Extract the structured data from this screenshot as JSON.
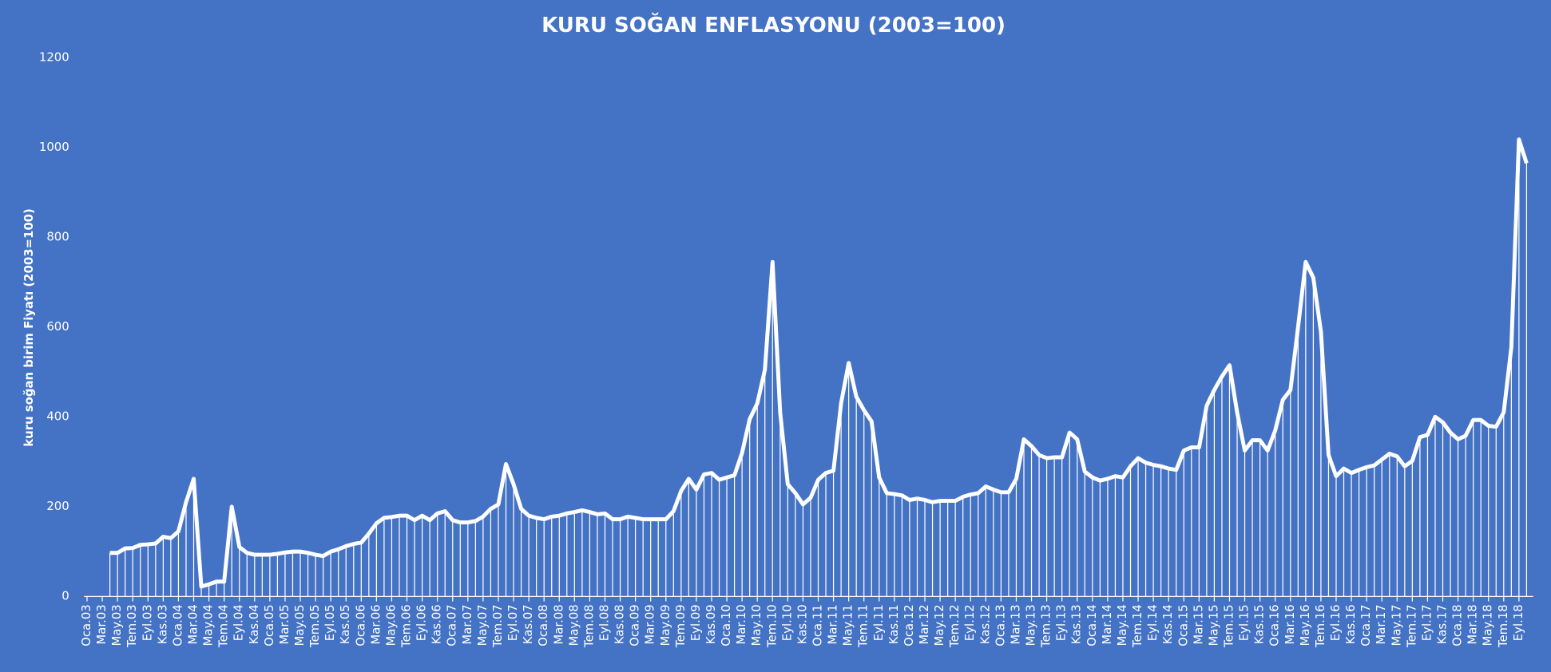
{
  "chart_data": {
    "type": "line",
    "title": "KURU SOĞAN ENFLASYONU (2003=100)",
    "y_label": "kuru soğan birim Fiyatı (2003=100)",
    "categories": [
      "Oca.03",
      null,
      "Mar.03",
      null,
      "May.03",
      null,
      "Tem.03",
      null,
      "Eyl.03",
      null,
      "Kas.03",
      null,
      "Oca.04",
      null,
      "Mar.04",
      null,
      "May.04",
      null,
      "Tem.04",
      null,
      "Eyl.04",
      null,
      "Kas.04",
      null,
      "Oca.05",
      null,
      "Mar.05",
      null,
      "May.05",
      null,
      "Tem.05",
      null,
      "Eyl.05",
      null,
      "Kas.05",
      null,
      "Oca.06",
      null,
      "Mar.06",
      null,
      "May.06",
      null,
      "Tem.06",
      null,
      "Eyl.06",
      null,
      "Kas.06",
      null,
      "Oca.07",
      null,
      "Mar.07",
      null,
      "May.07",
      null,
      "Tem.07",
      null,
      "Eyl.07",
      null,
      "Kas.07",
      null,
      "Oca.08",
      null,
      "Mar.08",
      null,
      "May.08",
      null,
      "Tem.08",
      null,
      "Eyl.08",
      null,
      "Kas.08",
      null,
      "Oca.09",
      null,
      "Mar.09",
      null,
      "May.09",
      null,
      "Tem.09",
      null,
      "Eyl.09",
      null,
      "Kas.09",
      null,
      "Oca.10",
      null,
      "Mar.10",
      null,
      "May.10",
      null,
      "Tem.10",
      null,
      "Eyl.10",
      null,
      "Kas.10",
      null,
      "Oca.11",
      null,
      "Mar.11",
      null,
      "May.11",
      null,
      "Tem.11",
      null,
      "Eyl.11",
      null,
      "Kas.11",
      null,
      "Oca.12",
      null,
      "Mar.12",
      null,
      "May.12",
      null,
      "Tem.12",
      null,
      "Eyl.12",
      null,
      "Kas.12",
      null,
      "Oca.13",
      null,
      "Mar.13",
      null,
      "May.13",
      null,
      "Tem.13",
      null,
      "Eyl.13",
      null,
      "Kas.13",
      null,
      "Oca.14",
      null,
      "Mar.14",
      null,
      "May.14",
      null,
      "Tem.14",
      null,
      "Eyl.14",
      null,
      "Kas.14",
      null,
      "Oca.15",
      null,
      "Mar.15",
      null,
      "May.15",
      null,
      "Tem.15",
      null,
      "Eyl.15",
      null,
      "Kas.15",
      null,
      "Oca.16",
      null,
      "Mar.16",
      null,
      "May.16",
      null,
      "Tem.16",
      null,
      "Eyl.16",
      null,
      "Kas.16",
      null,
      "Oca.17",
      null,
      "Mar.17",
      null,
      "May.17",
      null,
      "Tem.17",
      null,
      "Eyl.17",
      null,
      "Kas.17",
      null,
      "Oca.18",
      null,
      "Mar.18",
      null,
      "May.18",
      null,
      "Tem.18",
      null,
      "Eyl.18",
      null
    ],
    "values": [
      null,
      null,
      null,
      97,
      97,
      107,
      108,
      115,
      116,
      118,
      133,
      130,
      145,
      210,
      262,
      22,
      27,
      33,
      33,
      200,
      110,
      97,
      93,
      93,
      93,
      95,
      98,
      100,
      100,
      97,
      93,
      90,
      100,
      105,
      112,
      117,
      120,
      140,
      163,
      175,
      177,
      180,
      180,
      170,
      180,
      170,
      185,
      190,
      170,
      165,
      165,
      168,
      178,
      195,
      205,
      295,
      250,
      195,
      180,
      175,
      172,
      178,
      180,
      185,
      188,
      192,
      188,
      183,
      185,
      172,
      172,
      178,
      175,
      172,
      172,
      172,
      172,
      190,
      235,
      262,
      238,
      272,
      275,
      260,
      265,
      270,
      320,
      395,
      430,
      505,
      745,
      410,
      250,
      230,
      205,
      220,
      260,
      275,
      280,
      430,
      520,
      445,
      415,
      390,
      265,
      230,
      228,
      225,
      215,
      218,
      215,
      210,
      213,
      213,
      213,
      222,
      227,
      230,
      245,
      238,
      232,
      232,
      262,
      350,
      335,
      315,
      308,
      310,
      310,
      365,
      350,
      278,
      265,
      258,
      262,
      268,
      265,
      290,
      308,
      298,
      293,
      290,
      285,
      282,
      325,
      332,
      332,
      425,
      460,
      490,
      515,
      410,
      325,
      348,
      348,
      325,
      370,
      438,
      460,
      600,
      745,
      710,
      590,
      315,
      268,
      285,
      275,
      282,
      288,
      292,
      305,
      318,
      312,
      290,
      302,
      355,
      360,
      400,
      388,
      365,
      350,
      358,
      393,
      393,
      380,
      378,
      410,
      555,
      1018,
      965
    ],
    "color": "#ffffff",
    "ylim": [
      0,
      1200
    ],
    "yticks": [
      0,
      200,
      400,
      600,
      800,
      1000,
      1200
    ],
    "grid": false
  }
}
